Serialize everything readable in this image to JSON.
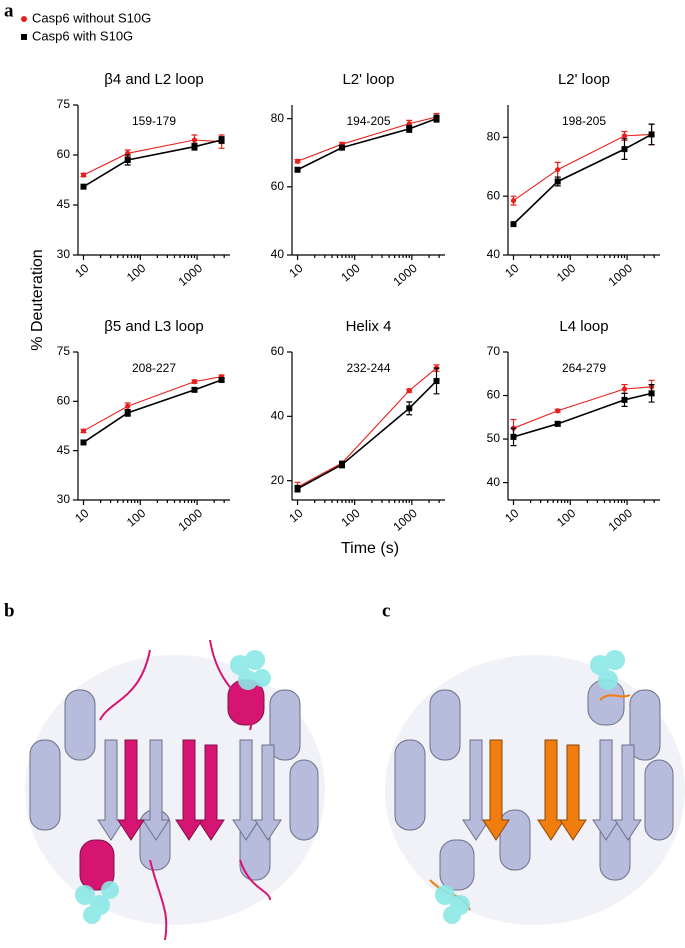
{
  "figure": {
    "panel_a": "a",
    "panel_b": "b",
    "panel_c": "c",
    "ylabel": "% Deuteration",
    "xlabel": "Time (s)"
  },
  "chart_data": [
    {
      "type": "line",
      "title": "β4 and L2 loop",
      "subtitle": "159-179",
      "x": [
        10,
        60,
        900,
        2700
      ],
      "xlim": [
        8,
        3800
      ],
      "xticks": [
        10,
        100,
        1000
      ],
      "xscale": "log",
      "ylim": [
        30,
        75
      ],
      "yticks": [
        30,
        45,
        60,
        75
      ],
      "series": [
        {
          "name": "Casp6 without S10G",
          "color": "#e8201c",
          "marker": "circle",
          "values": [
            54,
            60.5,
            64.5,
            64
          ],
          "errors": [
            0.5,
            1,
            1.5,
            2
          ]
        },
        {
          "name": "Casp6 with S10G",
          "color": "#000000",
          "marker": "square",
          "values": [
            50.5,
            58.5,
            62.5,
            64.5
          ],
          "errors": [
            0.5,
            1.5,
            1,
            1
          ]
        }
      ]
    },
    {
      "type": "line",
      "title": "L2' loop",
      "subtitle": "194-205",
      "x": [
        10,
        60,
        900,
        2700
      ],
      "xlim": [
        8,
        3800
      ],
      "xticks": [
        10,
        100,
        1000
      ],
      "xscale": "log",
      "ylim": [
        40,
        84
      ],
      "yticks": [
        40,
        60,
        80
      ],
      "series": [
        {
          "name": "Casp6 without S10G",
          "color": "#e8201c",
          "marker": "circle",
          "values": [
            67.5,
            72.5,
            78.5,
            80.5
          ],
          "errors": [
            0.5,
            0.5,
            1,
            1
          ]
        },
        {
          "name": "Casp6 with S10G",
          "color": "#000000",
          "marker": "square",
          "values": [
            65,
            71.5,
            77,
            80
          ],
          "errors": [
            0.5,
            0.5,
            1,
            1
          ]
        }
      ]
    },
    {
      "type": "line",
      "title": "L2' loop",
      "subtitle": "198-205",
      "x": [
        10,
        60,
        900,
        2700
      ],
      "xlim": [
        8,
        3800
      ],
      "xticks": [
        10,
        100,
        1000
      ],
      "xscale": "log",
      "ylim": [
        40,
        91
      ],
      "yticks": [
        40,
        60,
        80
      ],
      "series": [
        {
          "name": "Casp6 without S10G",
          "color": "#e8201c",
          "marker": "circle",
          "values": [
            58.5,
            69,
            80.5,
            81
          ],
          "errors": [
            1.5,
            2.5,
            1.5,
            3.5
          ]
        },
        {
          "name": "Casp6 with S10G",
          "color": "#000000",
          "marker": "square",
          "values": [
            50.5,
            65,
            76,
            81
          ],
          "errors": [
            0.5,
            1.5,
            3.5,
            3.5
          ]
        }
      ]
    },
    {
      "type": "line",
      "title": "β5 and L3 loop",
      "subtitle": "208-227",
      "x": [
        10,
        60,
        900,
        2700
      ],
      "xlim": [
        8,
        3800
      ],
      "xticks": [
        10,
        100,
        1000
      ],
      "xscale": "log",
      "ylim": [
        30,
        75
      ],
      "yticks": [
        30,
        45,
        60,
        75
      ],
      "series": [
        {
          "name": "Casp6 without S10G",
          "color": "#e8201c",
          "marker": "circle",
          "values": [
            51,
            58.5,
            66,
            67.5
          ],
          "errors": [
            0.5,
            1,
            0.5,
            0.5
          ]
        },
        {
          "name": "Casp6 with S10G",
          "color": "#000000",
          "marker": "square",
          "values": [
            47.5,
            56.5,
            63.5,
            66.5
          ],
          "errors": [
            0.5,
            1,
            0.5,
            0.5
          ]
        }
      ]
    },
    {
      "type": "line",
      "title": "Helix 4",
      "subtitle": "232-244",
      "x": [
        10,
        60,
        900,
        2700
      ],
      "xlim": [
        8,
        3800
      ],
      "xticks": [
        10,
        100,
        1000
      ],
      "xscale": "log",
      "ylim": [
        14,
        60
      ],
      "yticks": [
        20,
        40,
        60
      ],
      "series": [
        {
          "name": "Casp6 without S10G",
          "color": "#e8201c",
          "marker": "circle",
          "values": [
            18,
            25.5,
            48,
            55
          ],
          "errors": [
            1.5,
            0.5,
            0.5,
            1
          ]
        },
        {
          "name": "Casp6 with S10G",
          "color": "#000000",
          "marker": "square",
          "values": [
            17.5,
            25,
            42.5,
            51
          ],
          "errors": [
            1,
            1,
            2,
            4
          ]
        }
      ]
    },
    {
      "type": "line",
      "title": "L4 loop",
      "subtitle": "264-279",
      "x": [
        10,
        60,
        900,
        2700
      ],
      "xlim": [
        8,
        3800
      ],
      "xticks": [
        10,
        100,
        1000
      ],
      "xscale": "log",
      "ylim": [
        36,
        70
      ],
      "yticks": [
        40,
        50,
        60,
        70
      ],
      "series": [
        {
          "name": "Casp6 without S10G",
          "color": "#e8201c",
          "marker": "circle",
          "values": [
            52.5,
            56.5,
            61.5,
            62
          ],
          "errors": [
            2,
            0.3,
            1,
            1.5
          ]
        },
        {
          "name": "Casp6 with S10G",
          "color": "#000000",
          "marker": "square",
          "values": [
            50.5,
            53.5,
            59,
            60.5
          ],
          "errors": [
            2,
            0.5,
            1.5,
            2
          ]
        }
      ]
    }
  ]
}
